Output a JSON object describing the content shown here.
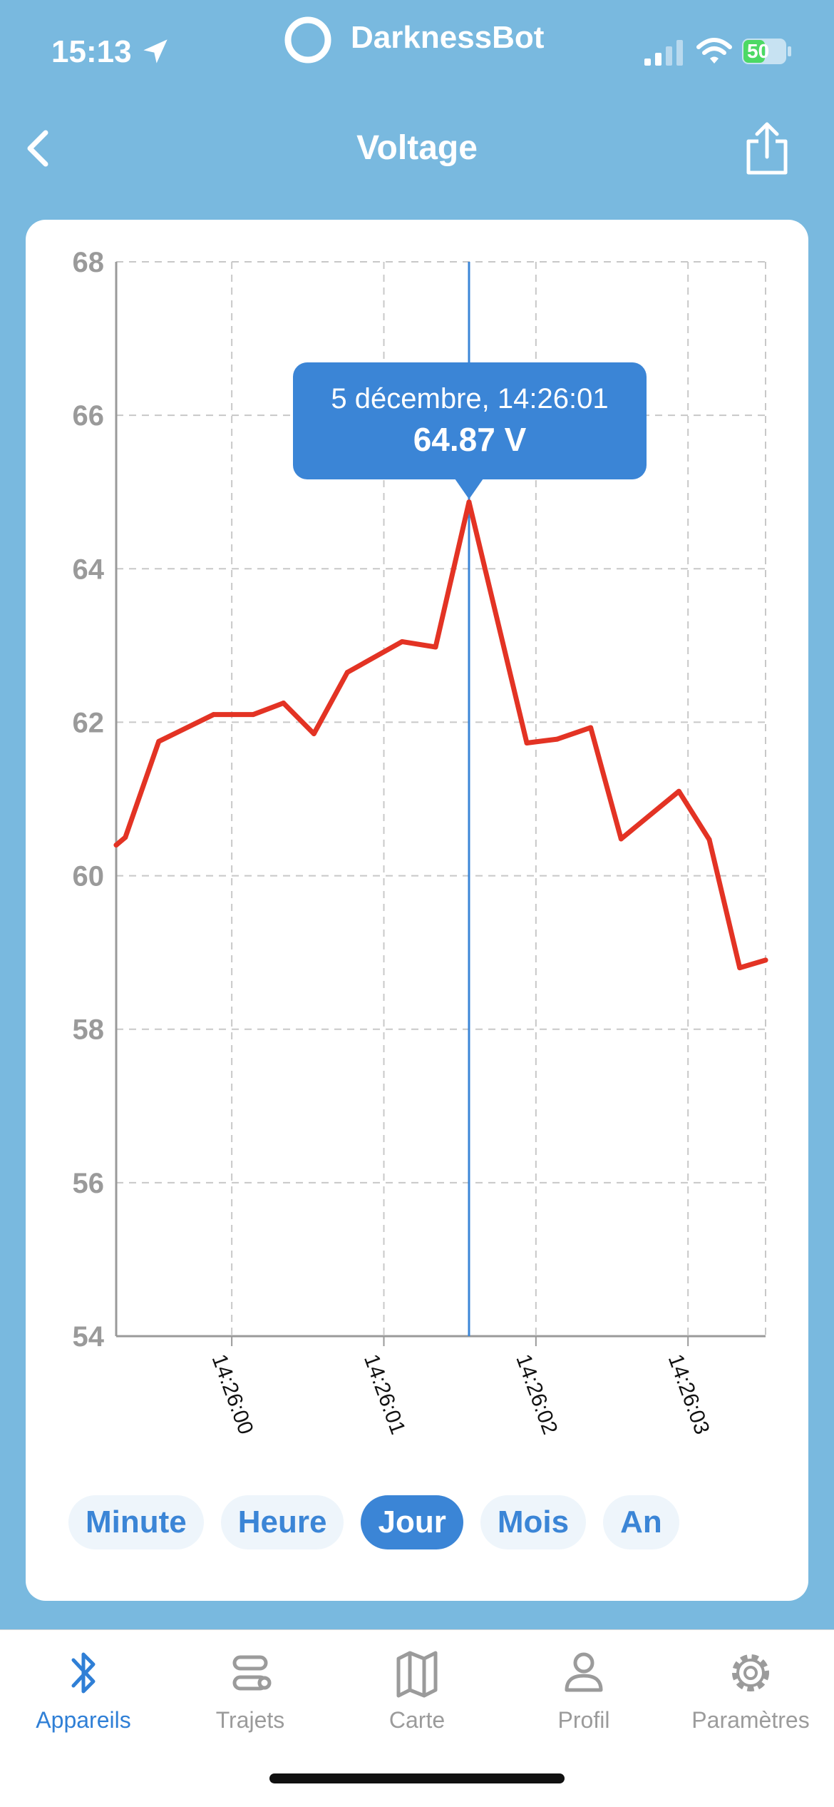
{
  "status": {
    "time": "15:13",
    "app_name": "DarknessBot",
    "battery": "50"
  },
  "nav": {
    "title": "Voltage"
  },
  "tooltip": {
    "date": "5 décembre, 14:26:01",
    "value": "64.87 V"
  },
  "ranges": [
    {
      "label": "Minute"
    },
    {
      "label": "Heure"
    },
    {
      "label": "Jour",
      "active": true
    },
    {
      "label": "Mois"
    },
    {
      "label": "An"
    }
  ],
  "tabs": [
    {
      "label": "Appareils",
      "icon": "bluetooth-icon",
      "active": true
    },
    {
      "label": "Trajets",
      "icon": "route-icon"
    },
    {
      "label": "Carte",
      "icon": "map-icon"
    },
    {
      "label": "Profil",
      "icon": "profile-icon"
    },
    {
      "label": "Paramètres",
      "icon": "gear-icon"
    }
  ],
  "colors": {
    "background": "#79b9df",
    "accent": "#3b85d6",
    "line": "#e33324"
  },
  "chart_data": {
    "type": "line",
    "ylim": [
      54,
      68
    ],
    "yticks": [
      "54",
      "56",
      "58",
      "60",
      "62",
      "64",
      "66",
      "68"
    ],
    "x_range": [
      "14:25:59.24",
      "14:26:03.51"
    ],
    "xticks": [
      {
        "label": "14:26:00",
        "t": 0.0
      },
      {
        "label": "14:26:01",
        "t": 1.0
      },
      {
        "label": "14:26:02",
        "t": 2.0
      },
      {
        "label": "14:26:03",
        "t": 3.0
      }
    ],
    "grid": true,
    "highlight": {
      "t": 1.56,
      "y": 64.87
    },
    "series": [
      {
        "t": [
          -0.76,
          -0.7,
          -0.48,
          -0.12,
          0.14,
          0.34,
          0.54,
          0.76,
          1.12,
          1.34,
          1.56,
          1.94,
          2.14,
          2.36,
          2.56,
          2.94,
          3.14,
          3.34,
          3.51
        ],
        "y": [
          60.4,
          60.5,
          61.75,
          62.1,
          62.1,
          62.25,
          61.85,
          62.65,
          63.05,
          62.98,
          64.87,
          61.73,
          61.78,
          61.93,
          60.48,
          61.1,
          60.47,
          58.8,
          58.9
        ]
      }
    ]
  }
}
